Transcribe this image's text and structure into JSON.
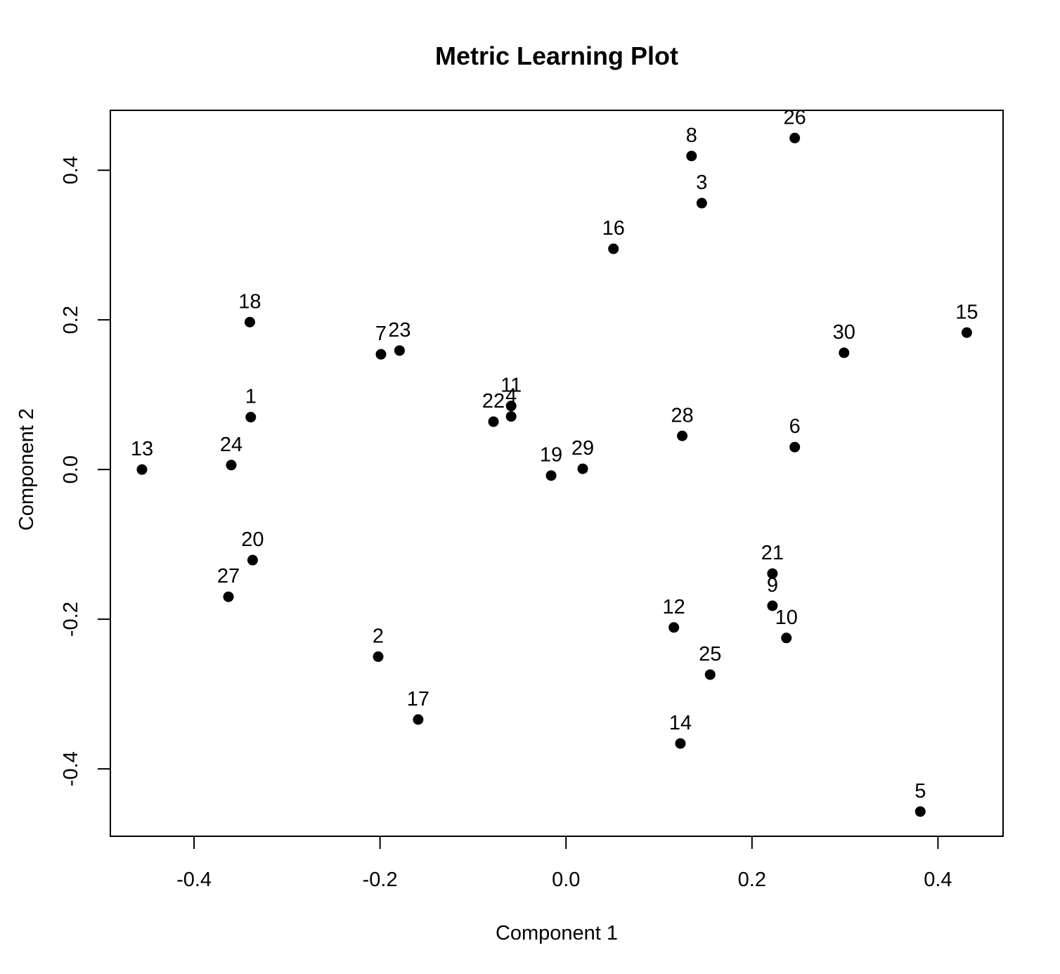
{
  "chart_data": {
    "type": "scatter",
    "title": "Metric Learning Plot",
    "xlabel": "Component 1",
    "ylabel": "Component 2",
    "xlim": [
      -0.49,
      0.47
    ],
    "ylim": [
      -0.49,
      0.48
    ],
    "xticks": [
      -0.4,
      -0.2,
      0.0,
      0.2,
      0.4
    ],
    "yticks": [
      -0.4,
      -0.2,
      0.0,
      0.2,
      0.4
    ],
    "xtick_labels": [
      "-0.4",
      "-0.2",
      "0.0",
      "0.2",
      "0.4"
    ],
    "ytick_labels": [
      "-0.4",
      "-0.2",
      "0.0",
      "0.2",
      "0.4"
    ],
    "grid": false,
    "point_color": "#000000",
    "points": [
      {
        "label": "1",
        "x": -0.339,
        "y": 0.07
      },
      {
        "label": "2",
        "x": -0.202,
        "y": -0.25
      },
      {
        "label": "3",
        "x": 0.146,
        "y": 0.356
      },
      {
        "label": "4",
        "x": -0.059,
        "y": 0.071
      },
      {
        "label": "5",
        "x": 0.381,
        "y": -0.457
      },
      {
        "label": "6",
        "x": 0.246,
        "y": 0.03
      },
      {
        "label": "7",
        "x": -0.199,
        "y": 0.154
      },
      {
        "label": "8",
        "x": 0.135,
        "y": 0.419
      },
      {
        "label": "9",
        "x": 0.222,
        "y": -0.182
      },
      {
        "label": "10",
        "x": 0.237,
        "y": -0.225
      },
      {
        "label": "11",
        "x": -0.059,
        "y": 0.085
      },
      {
        "label": "12",
        "x": 0.116,
        "y": -0.211
      },
      {
        "label": "13",
        "x": -0.456,
        "y": 0.0
      },
      {
        "label": "14",
        "x": 0.123,
        "y": -0.366
      },
      {
        "label": "15",
        "x": 0.431,
        "y": 0.183
      },
      {
        "label": "16",
        "x": 0.051,
        "y": 0.295
      },
      {
        "label": "17",
        "x": -0.159,
        "y": -0.334
      },
      {
        "label": "18",
        "x": -0.34,
        "y": 0.197
      },
      {
        "label": "19",
        "x": -0.016,
        "y": -0.008
      },
      {
        "label": "20",
        "x": -0.337,
        "y": -0.121
      },
      {
        "label": "21",
        "x": 0.222,
        "y": -0.139
      },
      {
        "label": "22",
        "x": -0.078,
        "y": 0.064
      },
      {
        "label": "23",
        "x": -0.179,
        "y": 0.159
      },
      {
        "label": "24",
        "x": -0.36,
        "y": 0.006
      },
      {
        "label": "25",
        "x": 0.155,
        "y": -0.274
      },
      {
        "label": "26",
        "x": 0.246,
        "y": 0.443
      },
      {
        "label": "27",
        "x": -0.363,
        "y": -0.17
      },
      {
        "label": "28",
        "x": 0.125,
        "y": 0.045
      },
      {
        "label": "29",
        "x": 0.018,
        "y": 0.001
      },
      {
        "label": "30",
        "x": 0.299,
        "y": 0.156
      }
    ]
  }
}
